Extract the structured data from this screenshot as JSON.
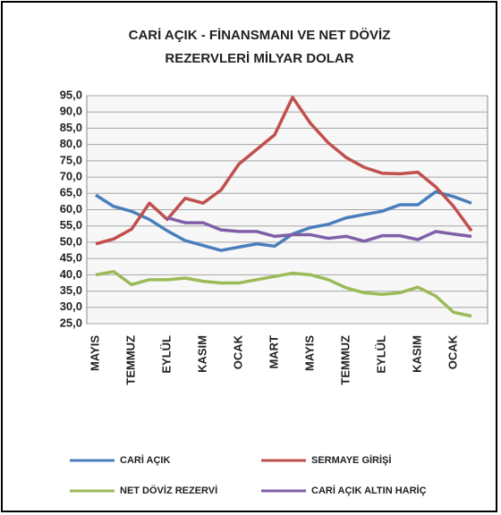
{
  "chart_data": {
    "type": "line",
    "title": [
      "CARİ AÇIK - FİNANSMANI VE NET DÖVİZ",
      "REZERVLERİ  MİLYAR DOLAR"
    ],
    "categories": [
      "MAYIS",
      null,
      "TEMMUZ",
      null,
      "EYLÜL",
      null,
      "KASIM",
      null,
      "OCAK",
      null,
      "MART",
      null,
      "MAYIS",
      null,
      "TEMMUZ",
      null,
      "EYLÜL",
      null,
      "KASIM",
      null,
      "OCAK",
      null
    ],
    "series": [
      {
        "name": "CARİ AÇIK",
        "color": "#4a7ebb",
        "values": [
          64.5,
          61,
          59.5,
          57,
          53.5,
          50.5,
          49,
          47.5,
          48.5,
          49.5,
          48.8,
          52.5,
          54.5,
          55.5,
          57.5,
          58.5,
          59.5,
          61.5,
          61.5,
          65.5,
          64,
          62
        ]
      },
      {
        "name": "SERMAYE GİRİŞİ",
        "color": "#c0504d",
        "values": [
          49.5,
          51,
          54,
          62,
          57,
          63.5,
          62,
          66,
          74,
          78.5,
          83,
          94.5,
          86.5,
          80.5,
          76,
          73,
          71.2,
          71,
          71.5,
          67,
          61,
          53.5
        ]
      },
      {
        "name": "NET DÖVİZ REZERVİ",
        "color": "#9bbb59",
        "values": [
          40,
          41,
          37,
          38.5,
          38.5,
          39,
          38,
          37.5,
          37.5,
          38.5,
          39.5,
          40.5,
          40,
          38.5,
          36,
          34.5,
          34,
          34.5,
          36.2,
          33.5,
          28.5,
          27.3
        ]
      },
      {
        "name": "CARİ AÇIK ALTIN HARİÇ",
        "color": "#7f5fa8",
        "values": [
          null,
          null,
          null,
          null,
          57.5,
          56,
          56,
          53.8,
          53.3,
          53.3,
          51.8,
          52.3,
          52.3,
          51.2,
          51.8,
          50.3,
          52,
          52,
          50.8,
          53.3,
          52.5,
          51.8
        ]
      }
    ],
    "ylim": [
      25,
      95
    ],
    "yticks": [
      {
        "value": 25,
        "label": "25,0"
      },
      {
        "value": 30,
        "label": "30,0"
      },
      {
        "value": 35,
        "label": "35,0"
      },
      {
        "value": 40,
        "label": "40,0"
      },
      {
        "value": 45,
        "label": "45,0"
      },
      {
        "value": 50,
        "label": "50,0"
      },
      {
        "value": 55,
        "label": "55,0"
      },
      {
        "value": 60,
        "label": "60,0"
      },
      {
        "value": 65,
        "label": "65,0"
      },
      {
        "value": 70,
        "label": "70,0"
      },
      {
        "value": 75,
        "label": "75,0"
      },
      {
        "value": 80,
        "label": "80,0"
      },
      {
        "value": 85,
        "label": "85,0"
      },
      {
        "value": 90,
        "label": "90,0"
      },
      {
        "value": 95,
        "label": "95,0"
      }
    ],
    "grid": true,
    "legend": "bottom"
  }
}
